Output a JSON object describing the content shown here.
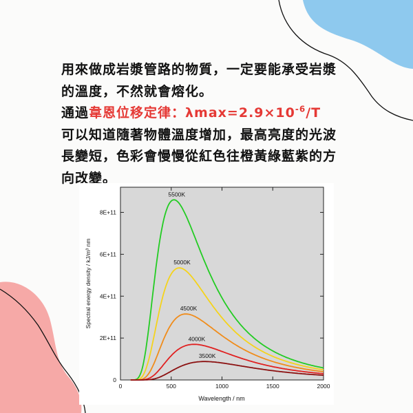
{
  "paragraph": {
    "line1": "用來做成岩漿管路的物質，一定要能承受岩漿",
    "line2": "的溫度，不然就會熔化。",
    "line3_prefix": "通過",
    "law_name": "韋恩位移定律：",
    "law_formula": "λmax=2.9×10",
    "law_exponent": "-6",
    "law_suffix": "/T",
    "line4": "可以知道隨著物體溫度增加，最高亮度的光波",
    "line5": "長變短，色彩會慢慢從紅色往橙黃綠藍紫的方",
    "line6": "向改變。"
  },
  "colors": {
    "accent_red": "#e53935",
    "blob_blue": "#8ec9ee",
    "blob_pink": "#f6a9a7"
  },
  "chart_data": {
    "type": "line",
    "xlabel": "Wavelength / nm",
    "ylabel": "Spectral energy density / kJ/m³ nm",
    "xlim": [
      0,
      2000
    ],
    "ylim": [
      0,
      920000000000.0
    ],
    "xticks": [
      0,
      500,
      1000,
      1500,
      2000
    ],
    "xtick_labels": [
      "0",
      "500",
      "1000",
      "1500",
      "2000"
    ],
    "yticks": [
      0,
      200000000000.0,
      400000000000.0,
      600000000000.0,
      800000000000.0
    ],
    "ytick_labels": [
      "0",
      "2E+11",
      "4E+11",
      "6E+11",
      "8E+11"
    ],
    "grid": false,
    "series": [
      {
        "name": "5500K",
        "temperature": 5500,
        "color": "#22cc22",
        "peak": 860000000000.0
      },
      {
        "name": "5000K",
        "temperature": 5000,
        "color": "#f5d31a",
        "peak": 535000000000.0
      },
      {
        "name": "4500K",
        "temperature": 4500,
        "color": "#f08c1a",
        "peak": 315000000000.0
      },
      {
        "name": "4000K",
        "temperature": 4000,
        "color": "#e02020",
        "peak": 170000000000.0
      },
      {
        "name": "3500K",
        "temperature": 3500,
        "color": "#8b1010",
        "peak": 88000000000.0
      }
    ]
  }
}
